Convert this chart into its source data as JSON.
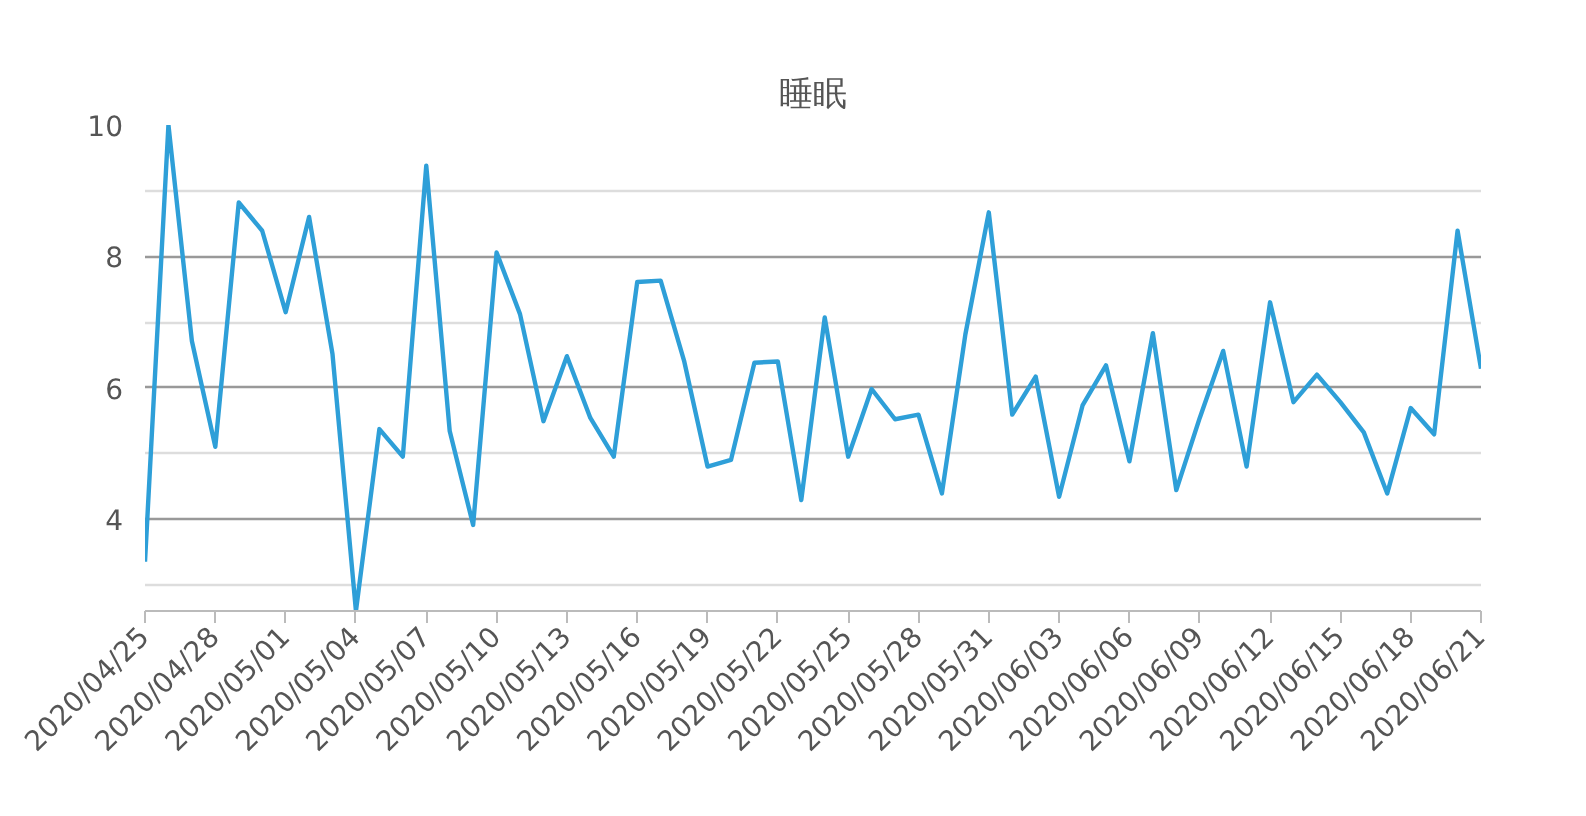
{
  "chart_data": {
    "type": "line",
    "title": "睡眠",
    "x": [
      "2020-04-25",
      "2020-04-26",
      "2020-04-27",
      "2020-04-28",
      "2020-04-29",
      "2020-04-30",
      "2020-05-01",
      "2020-05-02",
      "2020-05-03",
      "2020-05-04",
      "2020-05-05",
      "2020-05-06",
      "2020-05-07",
      "2020-05-08",
      "2020-05-09",
      "2020-05-10",
      "2020-05-11",
      "2020-05-12",
      "2020-05-13",
      "2020-05-14",
      "2020-05-15",
      "2020-05-16",
      "2020-05-17",
      "2020-05-18",
      "2020-05-19",
      "2020-05-20",
      "2020-05-21",
      "2020-05-22",
      "2020-05-23",
      "2020-05-24",
      "2020-05-25",
      "2020-05-26",
      "2020-05-27",
      "2020-05-28",
      "2020-05-29",
      "2020-05-30",
      "2020-05-31",
      "2020-06-01",
      "2020-06-02",
      "2020-06-03",
      "2020-06-04",
      "2020-06-05",
      "2020-06-06",
      "2020-06-07",
      "2020-06-08",
      "2020-06-09",
      "2020-06-10",
      "2020-06-11",
      "2020-06-12",
      "2020-06-13",
      "2020-06-14",
      "2020-06-15",
      "2020-06-16",
      "2020-06-17",
      "2020-06-18",
      "2020-06-19",
      "2020-06-20",
      "2020-06-21"
    ],
    "series": [
      {
        "color": "#2e9fd8",
        "values": [
          3.35,
          10.0,
          6.71,
          5.1,
          8.82,
          8.39,
          7.15,
          8.6,
          6.51,
          2.6,
          5.37,
          4.95,
          9.38,
          5.34,
          3.91,
          8.06,
          7.12,
          5.49,
          6.48,
          5.54,
          4.95,
          7.61,
          7.63,
          6.41,
          4.8,
          4.9,
          6.38,
          6.4,
          4.29,
          7.07,
          4.95,
          5.98,
          5.52,
          5.59,
          4.39,
          6.81,
          8.67,
          5.59,
          6.17,
          4.34,
          5.73,
          6.34,
          4.88,
          6.83,
          4.44,
          5.54,
          6.56,
          4.8,
          7.3,
          5.78,
          6.2,
          5.78,
          5.32,
          4.39,
          5.69,
          5.29,
          8.39,
          6.29
        ]
      }
    ],
    "xlim": [
      "2020-04-25",
      "2020-06-21"
    ],
    "xticks": [
      {
        "value": "2020-04-25",
        "label": "2020/04/25"
      },
      {
        "value": "2020-04-28",
        "label": "2020/04/28"
      },
      {
        "value": "2020-05-01",
        "label": "2020/05/01"
      },
      {
        "value": "2020-05-04",
        "label": "2020/05/04"
      },
      {
        "value": "2020-05-07",
        "label": "2020/05/07"
      },
      {
        "value": "2020-05-10",
        "label": "2020/05/10"
      },
      {
        "value": "2020-05-13",
        "label": "2020/05/13"
      },
      {
        "value": "2020-05-16",
        "label": "2020/05/16"
      },
      {
        "value": "2020-05-19",
        "label": "2020/05/19"
      },
      {
        "value": "2020-05-22",
        "label": "2020/05/22"
      },
      {
        "value": "2020-05-25",
        "label": "2020/05/25"
      },
      {
        "value": "2020-05-28",
        "label": "2020/05/28"
      },
      {
        "value": "2020-05-31",
        "label": "2020/05/31"
      },
      {
        "value": "2020-06-03",
        "label": "2020/06/03"
      },
      {
        "value": "2020-06-06",
        "label": "2020/06/06"
      },
      {
        "value": "2020-06-09",
        "label": "2020/06/09"
      },
      {
        "value": "2020-06-12",
        "label": "2020/06/12"
      },
      {
        "value": "2020-06-15",
        "label": "2020/06/15"
      },
      {
        "value": "2020-06-18",
        "label": "2020/06/18"
      },
      {
        "value": "2020-06-21",
        "label": "2020/06/21"
      }
    ],
    "ylim": [
      2.6,
      10
    ],
    "yticks": [
      {
        "value": 3,
        "label": null
      },
      4,
      {
        "value": 5,
        "label": null
      },
      6,
      {
        "value": 7,
        "label": null
      },
      8,
      {
        "value": 9,
        "label": null
      },
      10
    ],
    "grid": "y",
    "marker": "none",
    "line_style": "solid"
  }
}
